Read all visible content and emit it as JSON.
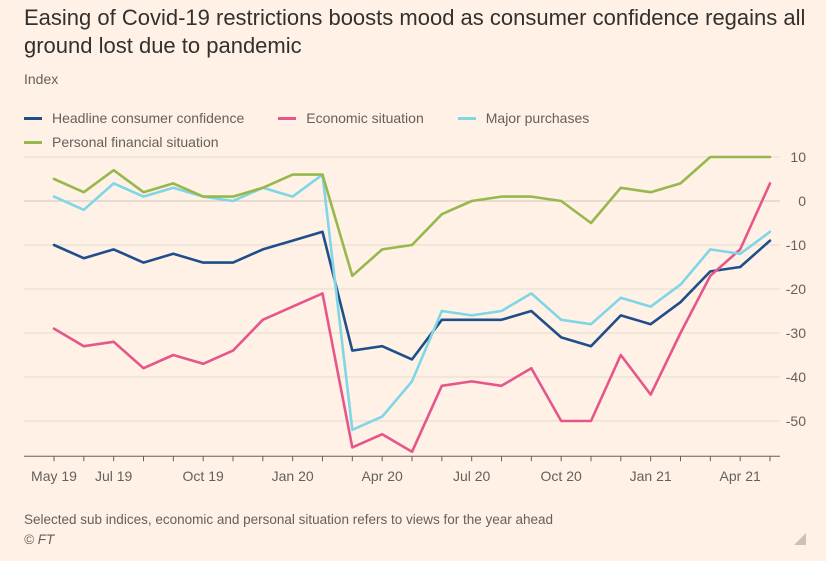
{
  "title": "Easing of Covid-19 restrictions boosts mood as consumer confidence regains all ground lost due to pandemic",
  "subtitle": "Index",
  "footer_note": "Selected sub indices, economic and personal situation refers to views for the year ahead",
  "source": "© FT",
  "chart_data": {
    "type": "line",
    "x": [
      "May 19",
      "Jun 19",
      "Jul 19",
      "Aug 19",
      "Sep 19",
      "Oct 19",
      "Nov 19",
      "Dec 19",
      "Jan 20",
      "Feb 20",
      "Mar 20",
      "Apr 20",
      "May 20",
      "Jun 20",
      "Jul 20",
      "Aug 20",
      "Sep 20",
      "Oct 20",
      "Nov 20",
      "Dec 20",
      "Jan 21",
      "Feb 21",
      "Mar 21",
      "Apr 21",
      "May 21"
    ],
    "x_tick_labels": [
      "May 19",
      "Jul 19",
      "Oct 19",
      "Jan 20",
      "Apr 20",
      "Jul 20",
      "Oct 20",
      "Jan 21",
      "Apr 21"
    ],
    "x_tick_positions": [
      0,
      2,
      5,
      8,
      11,
      14,
      17,
      20,
      23
    ],
    "xlabel": "",
    "ylabel": "Index",
    "ylim": [
      -58,
      12
    ],
    "y_ticks": [
      10,
      0,
      -10,
      -20,
      -30,
      -40,
      -50
    ],
    "y_tick_labels": [
      "10",
      "0",
      "-10",
      "-20",
      "-30",
      "-40",
      "-50"
    ],
    "grid": true,
    "legend_position": "top-left",
    "series": [
      {
        "name": "Headline consumer confidence",
        "color": "#1f4e8c",
        "values": [
          -10,
          -13,
          -11,
          -14,
          -12,
          -14,
          -14,
          -11,
          -9,
          -7,
          -34,
          -33,
          -36,
          -27,
          -27,
          -27,
          -25,
          -31,
          -33,
          -26,
          -28,
          -23,
          -16,
          -15,
          -9
        ]
      },
      {
        "name": "Economic situation",
        "color": "#e5578a",
        "values": [
          -29,
          -33,
          -32,
          -38,
          -35,
          -37,
          -34,
          -27,
          -24,
          -21,
          -56,
          -53,
          -57,
          -42,
          -41,
          -42,
          -38,
          -50,
          -50,
          -35,
          -44,
          -30,
          -17,
          -11,
          4
        ]
      },
      {
        "name": "Major purchases",
        "color": "#7fd6e5",
        "values": [
          1,
          -2,
          4,
          1,
          3,
          1,
          0,
          3,
          1,
          6,
          -52,
          -49,
          -41,
          -25,
          -26,
          -25,
          -21,
          -27,
          -28,
          -22,
          -24,
          -19,
          -11,
          -12,
          -7
        ]
      },
      {
        "name": "Personal financial situation",
        "color": "#96b84c",
        "values": [
          5,
          2,
          7,
          2,
          4,
          1,
          1,
          3,
          6,
          6,
          -17,
          -11,
          -10,
          -3,
          0,
          1,
          1,
          0,
          -5,
          3,
          2,
          4,
          10,
          10,
          10
        ]
      }
    ]
  }
}
